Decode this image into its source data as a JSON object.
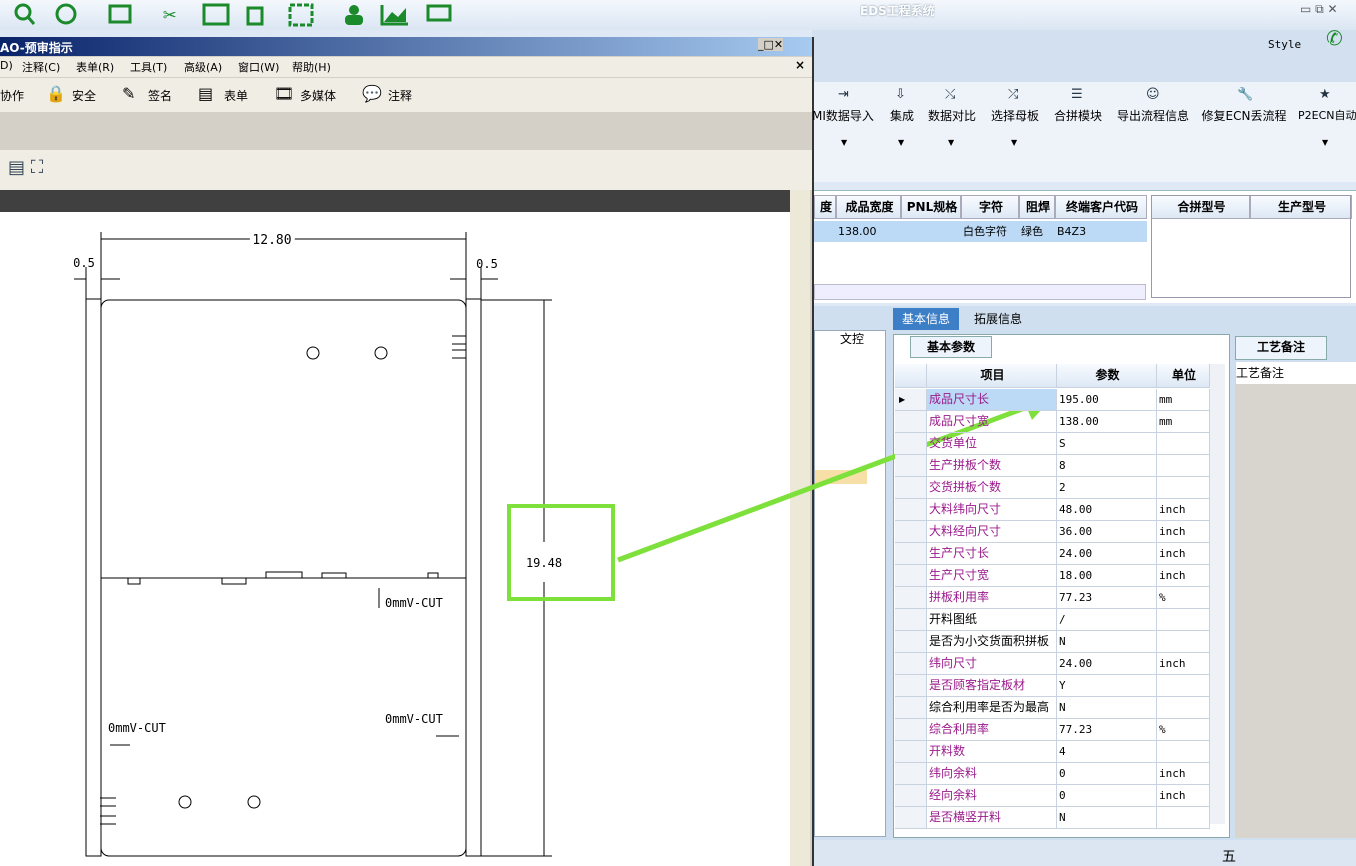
{
  "app": {
    "title": "EDS工程系统",
    "style_label": "Style",
    "ribbon_buttons": [
      "MI数据导入",
      "集成",
      "数据对比",
      "选择母板",
      "合拼模块",
      "导出流程信息",
      "修复ECN丢流程",
      "P2ECN自动"
    ],
    "top_grid": {
      "headers": [
        "度",
        "成品宽度",
        "PNL规格",
        "字符",
        "阻焊",
        "终端客户代码"
      ],
      "row": [
        "",
        "138.00",
        "",
        "白色字符",
        "绿色",
        "B4Z3"
      ]
    },
    "side_grid": {
      "headers": [
        "合拼型号",
        "生产型号"
      ]
    },
    "tabs": [
      "基本信息",
      "拓展信息"
    ],
    "left_panel_header": "文控",
    "sub_tab": "基本参数",
    "params": {
      "headers": [
        "项目",
        "参数",
        "单位"
      ],
      "rows": [
        {
          "item": "成品尺寸长",
          "value": "195.00",
          "unit": "mm",
          "color": "#9b1a8c"
        },
        {
          "item": "成品尺寸宽",
          "value": "138.00",
          "unit": "mm",
          "color": "#9b1a8c"
        },
        {
          "item": "交货单位",
          "value": "S",
          "unit": "",
          "color": "#9b1a8c"
        },
        {
          "item": "生产拼板个数",
          "value": "8",
          "unit": "",
          "color": "#9b1a8c"
        },
        {
          "item": "交货拼板个数",
          "value": "2",
          "unit": "",
          "color": "#9b1a8c"
        },
        {
          "item": "大料纬向尺寸",
          "value": "48.00",
          "unit": "inch",
          "color": "#9b1a8c"
        },
        {
          "item": "大料经向尺寸",
          "value": "36.00",
          "unit": "inch",
          "color": "#9b1a8c"
        },
        {
          "item": "生产尺寸长",
          "value": "24.00",
          "unit": "inch",
          "color": "#9b1a8c"
        },
        {
          "item": "生产尺寸宽",
          "value": "18.00",
          "unit": "inch",
          "color": "#9b1a8c"
        },
        {
          "item": "拼板利用率",
          "value": "77.23",
          "unit": "%",
          "color": "#9b1a8c"
        },
        {
          "item": "开料图纸",
          "value": "/",
          "unit": "",
          "color": "#000000"
        },
        {
          "item": "是否为小交货面积拼板",
          "value": "N",
          "unit": "",
          "color": "#000000"
        },
        {
          "item": "纬向尺寸",
          "value": "24.00",
          "unit": "inch",
          "color": "#9b1a8c"
        },
        {
          "item": "是否顾客指定板材",
          "value": "Y",
          "unit": "",
          "color": "#9b1a8c"
        },
        {
          "item": "综合利用率是否为最高",
          "value": "N",
          "unit": "",
          "color": "#000000"
        },
        {
          "item": "综合利用率",
          "value": "77.23",
          "unit": "%",
          "color": "#9b1a8c"
        },
        {
          "item": "开料数",
          "value": "4",
          "unit": "",
          "color": "#9b1a8c"
        },
        {
          "item": "纬向余料",
          "value": "0",
          "unit": "inch",
          "color": "#9b1a8c"
        },
        {
          "item": "经向余料",
          "value": "0",
          "unit": "inch",
          "color": "#9b1a8c"
        },
        {
          "item": "是否横竖开料",
          "value": "N",
          "unit": "",
          "color": "#9b1a8c"
        }
      ]
    },
    "remark_header": "工艺备注",
    "remark_label": "工艺备注",
    "status_ime": "五"
  },
  "viewer": {
    "title": "AO-预审指示",
    "menu": [
      "D)",
      "注释(C)",
      "表单(R)",
      "工具(T)",
      "高级(A)",
      "窗口(W)",
      "帮助(H)"
    ],
    "toolbar": [
      "协作",
      "安全",
      "签名",
      "表单",
      "多媒体",
      "注释"
    ],
    "drawing": {
      "width": "12.80",
      "left_margin": "0.5",
      "right_margin": "0.5",
      "height": "19.48",
      "vcut_labels": [
        "0mmV-CUT",
        "0mmV-CUT",
        "0mmV-CUT"
      ]
    }
  }
}
